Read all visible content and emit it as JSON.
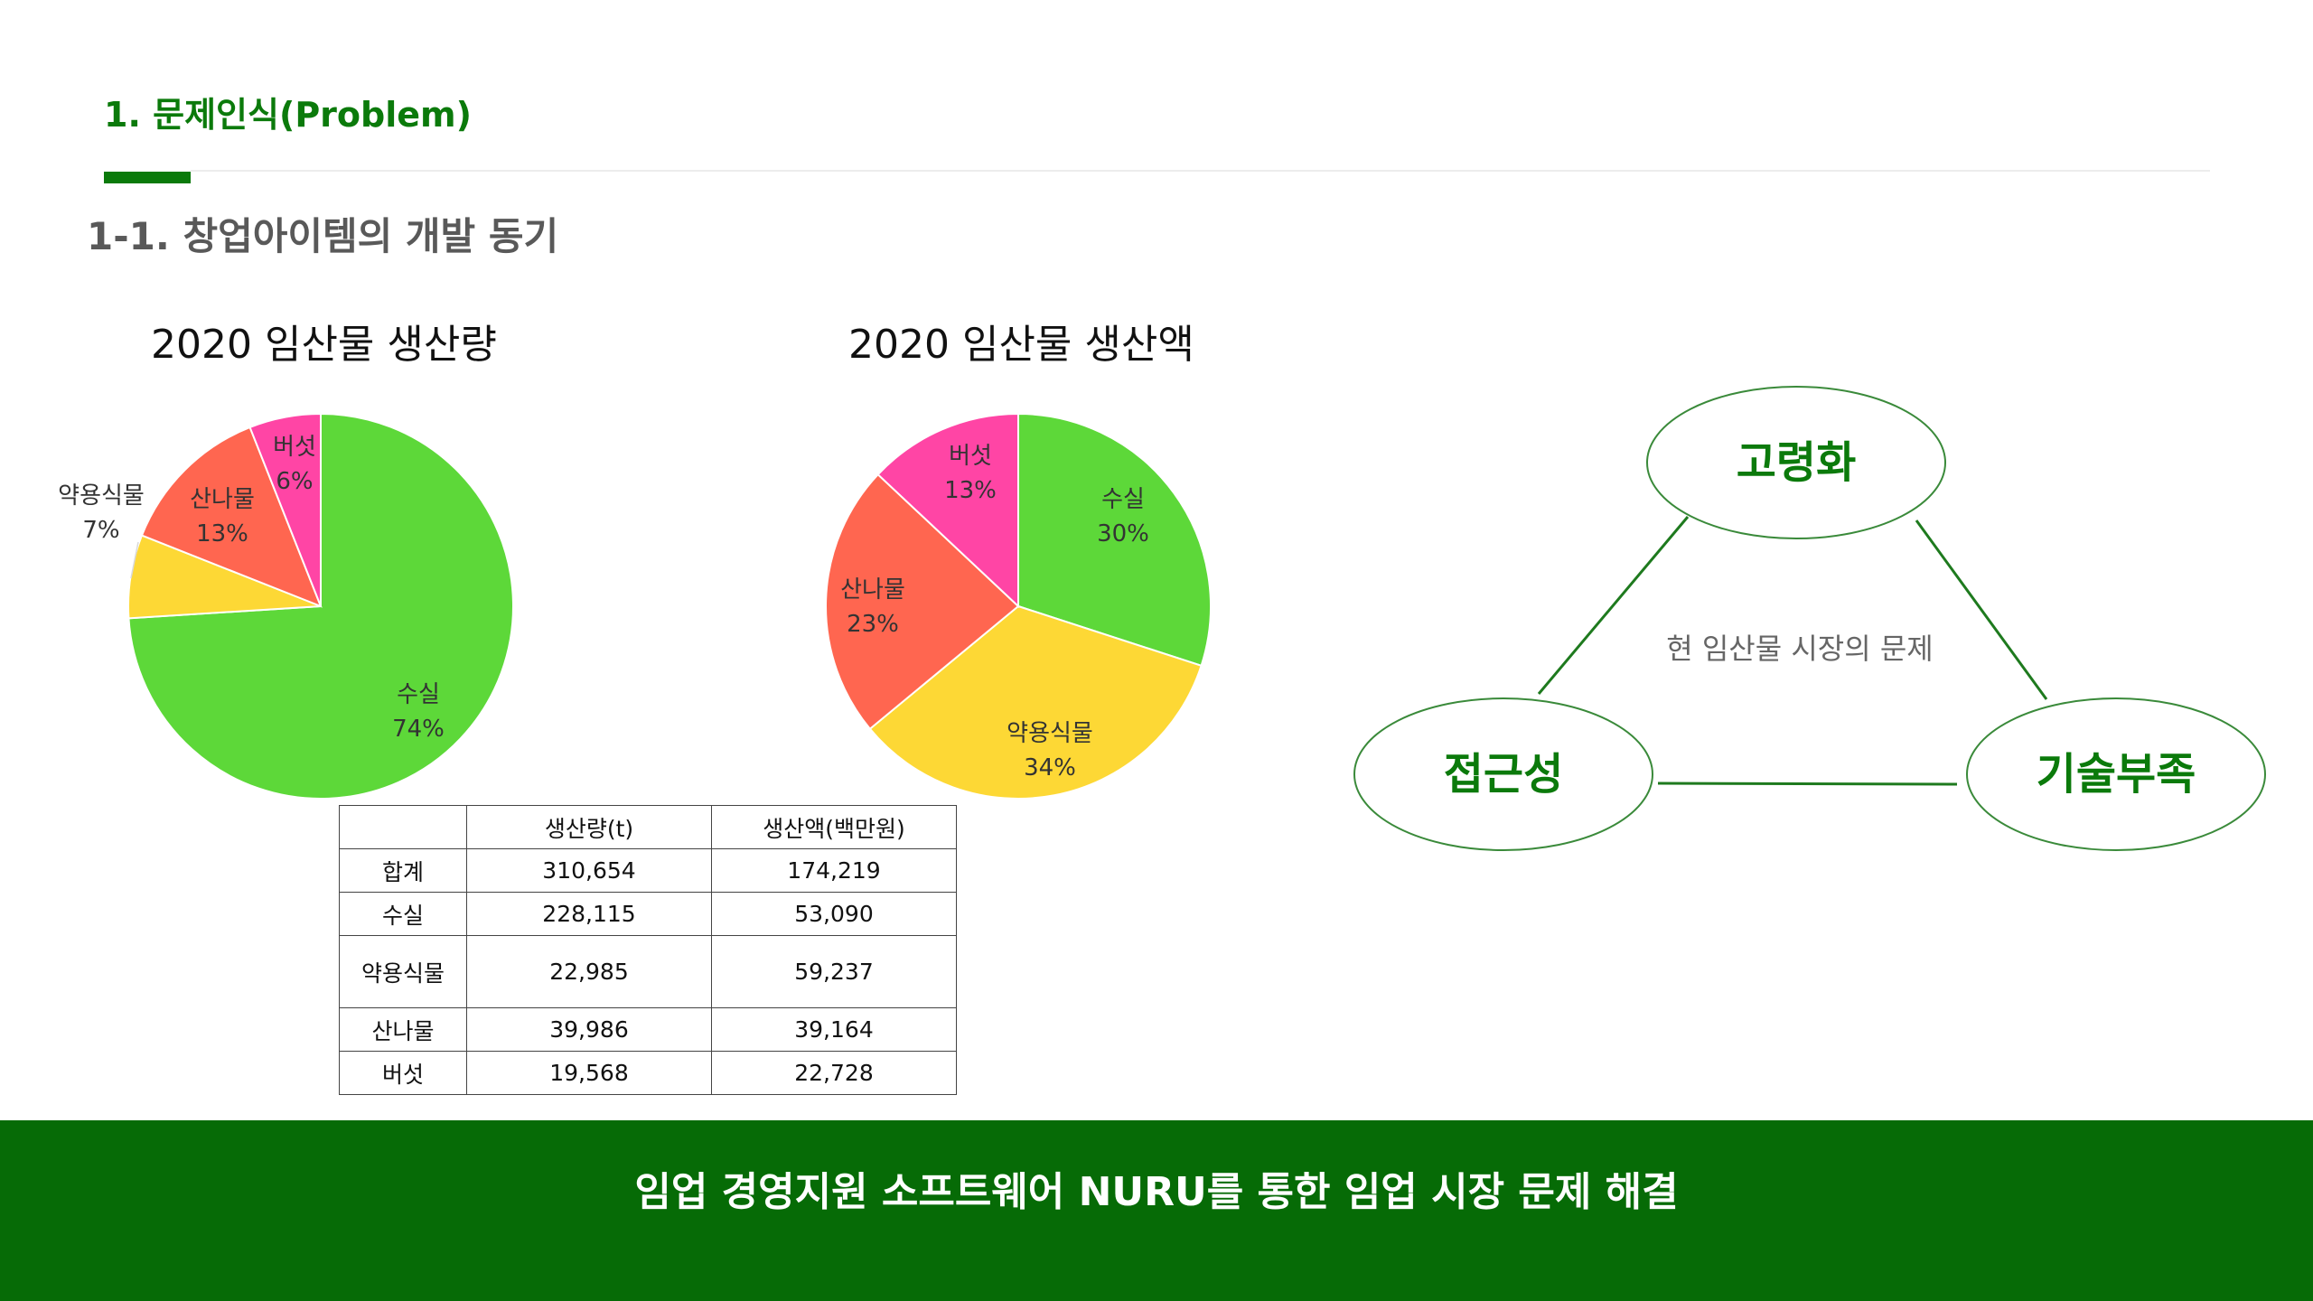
{
  "header": {
    "section_title": "1. 문제인식(Problem)",
    "subsection_title": "1-1. 창업아이템의 개발 동기"
  },
  "colors": {
    "brand_green": "#0b7a0b",
    "footer_green": "#066b06",
    "slice_green": "#5dd839",
    "slice_yellow": "#fdd835",
    "slice_red": "#ff6650",
    "slice_pink": "#ff45a5"
  },
  "chart_data": [
    {
      "type": "pie",
      "title": "2020 임산물 생산량",
      "slices": [
        {
          "label": "수실",
          "percent_label": "74%",
          "value": 74,
          "color": "#5dd839"
        },
        {
          "label": "약용식물",
          "percent_label": "7%",
          "value": 7,
          "color": "#fdd835"
        },
        {
          "label": "산나물",
          "percent_label": "13%",
          "value": 13,
          "color": "#ff6650"
        },
        {
          "label": "버섯",
          "percent_label": "6%",
          "value": 6,
          "color": "#ff45a5"
        }
      ]
    },
    {
      "type": "pie",
      "title": "2020 임산물 생산액",
      "slices": [
        {
          "label": "수실",
          "percent_label": "30%",
          "value": 30,
          "color": "#5dd839"
        },
        {
          "label": "약용식물",
          "percent_label": "34%",
          "value": 34,
          "color": "#fdd835"
        },
        {
          "label": "산나물",
          "percent_label": "23%",
          "value": 23,
          "color": "#ff6650"
        },
        {
          "label": "버섯",
          "percent_label": "13%",
          "value": 13,
          "color": "#ff45a5"
        }
      ]
    },
    {
      "type": "table",
      "columns": [
        "",
        "생산량(t)",
        "생산액(백만원)"
      ],
      "rows": [
        [
          "합계",
          "310,654",
          "174,219"
        ],
        [
          "수실",
          "228,115",
          "53,090"
        ],
        [
          "약용식물",
          "22,985",
          "59,237"
        ],
        [
          "산나물",
          "39,986",
          "39,164"
        ],
        [
          "버섯",
          "19,568",
          "22,728"
        ]
      ]
    }
  ],
  "diagram": {
    "center_text": "현 임산물 시장의 문제",
    "nodes": [
      "고령화",
      "접근성",
      "기술부족"
    ]
  },
  "footer": {
    "text": "임업 경영지원 소프트웨어 NURU를 통한 임업 시장 문제 해결"
  }
}
